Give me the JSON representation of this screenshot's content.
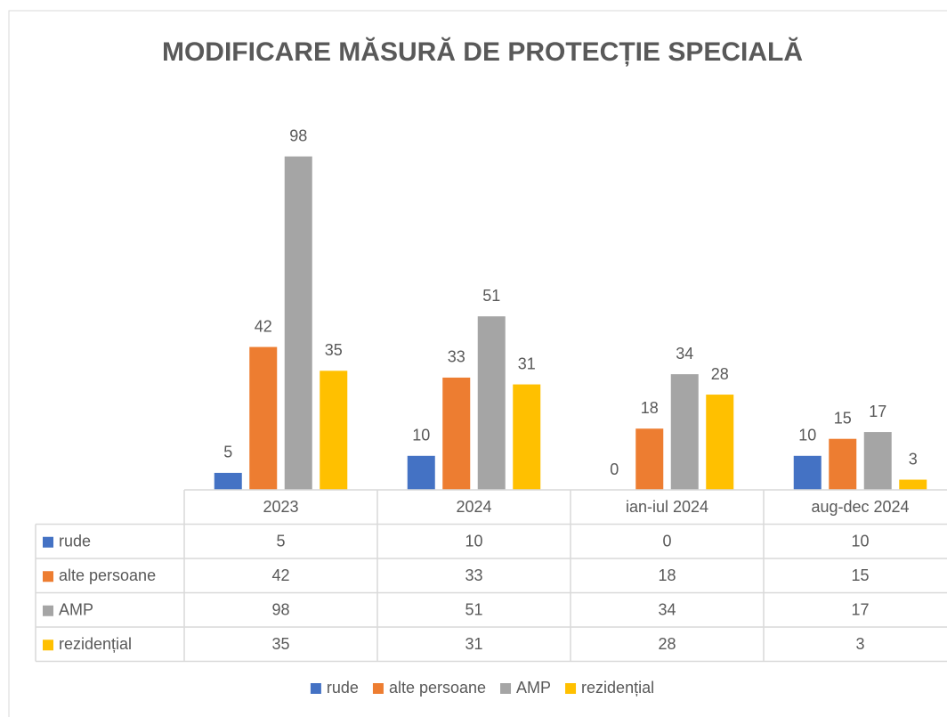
{
  "chart_data": {
    "type": "bar",
    "title": "MODIFICARE MĂSURĂ DE PROTECȚIE SPECIALĂ",
    "categories": [
      "2023",
      "2024",
      "ian-iul 2024",
      "aug-dec 2024"
    ],
    "series": [
      {
        "name": "rude",
        "color": "#4472c4",
        "values": [
          5,
          10,
          0,
          10
        ]
      },
      {
        "name": "alte persoane",
        "color": "#ed7d31",
        "values": [
          42,
          33,
          18,
          15
        ]
      },
      {
        "name": "AMP",
        "color": "#a5a5a5",
        "values": [
          98,
          51,
          34,
          17
        ]
      },
      {
        "name": "rezidențial",
        "color": "#ffc000",
        "values": [
          35,
          31,
          28,
          3
        ]
      }
    ],
    "data_table": true,
    "legend": "bottom"
  }
}
